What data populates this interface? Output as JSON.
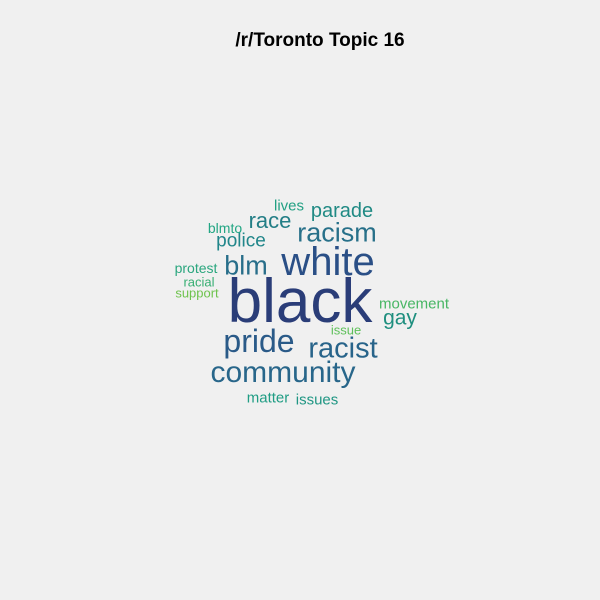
{
  "title": "/r/Toronto Topic 16",
  "words": [
    {
      "text": "black",
      "color": "#2a3d78"
    },
    {
      "text": "white",
      "color": "#2a4f86"
    },
    {
      "text": "community",
      "color": "#28668a"
    },
    {
      "text": "pride",
      "color": "#2a5a88"
    },
    {
      "text": "racist",
      "color": "#28648a"
    },
    {
      "text": "racism",
      "color": "#277089"
    },
    {
      "text": "blm",
      "color": "#286e8a"
    },
    {
      "text": "race",
      "color": "#237e86"
    },
    {
      "text": "parade",
      "color": "#208a84"
    },
    {
      "text": "police",
      "color": "#21868a"
    },
    {
      "text": "gay",
      "color": "#1f8f7f"
    },
    {
      "text": "lives",
      "color": "#22a083"
    },
    {
      "text": "blmto",
      "color": "#23a684"
    },
    {
      "text": "protest",
      "color": "#2aa67e"
    },
    {
      "text": "racial",
      "color": "#36ae72"
    },
    {
      "text": "support",
      "color": "#6ec34d"
    },
    {
      "text": "movement",
      "color": "#47b664"
    },
    {
      "text": "issue",
      "color": "#5ec05a"
    },
    {
      "text": "matter",
      "color": "#209d84"
    },
    {
      "text": "issues",
      "color": "#1f9683"
    }
  ]
}
